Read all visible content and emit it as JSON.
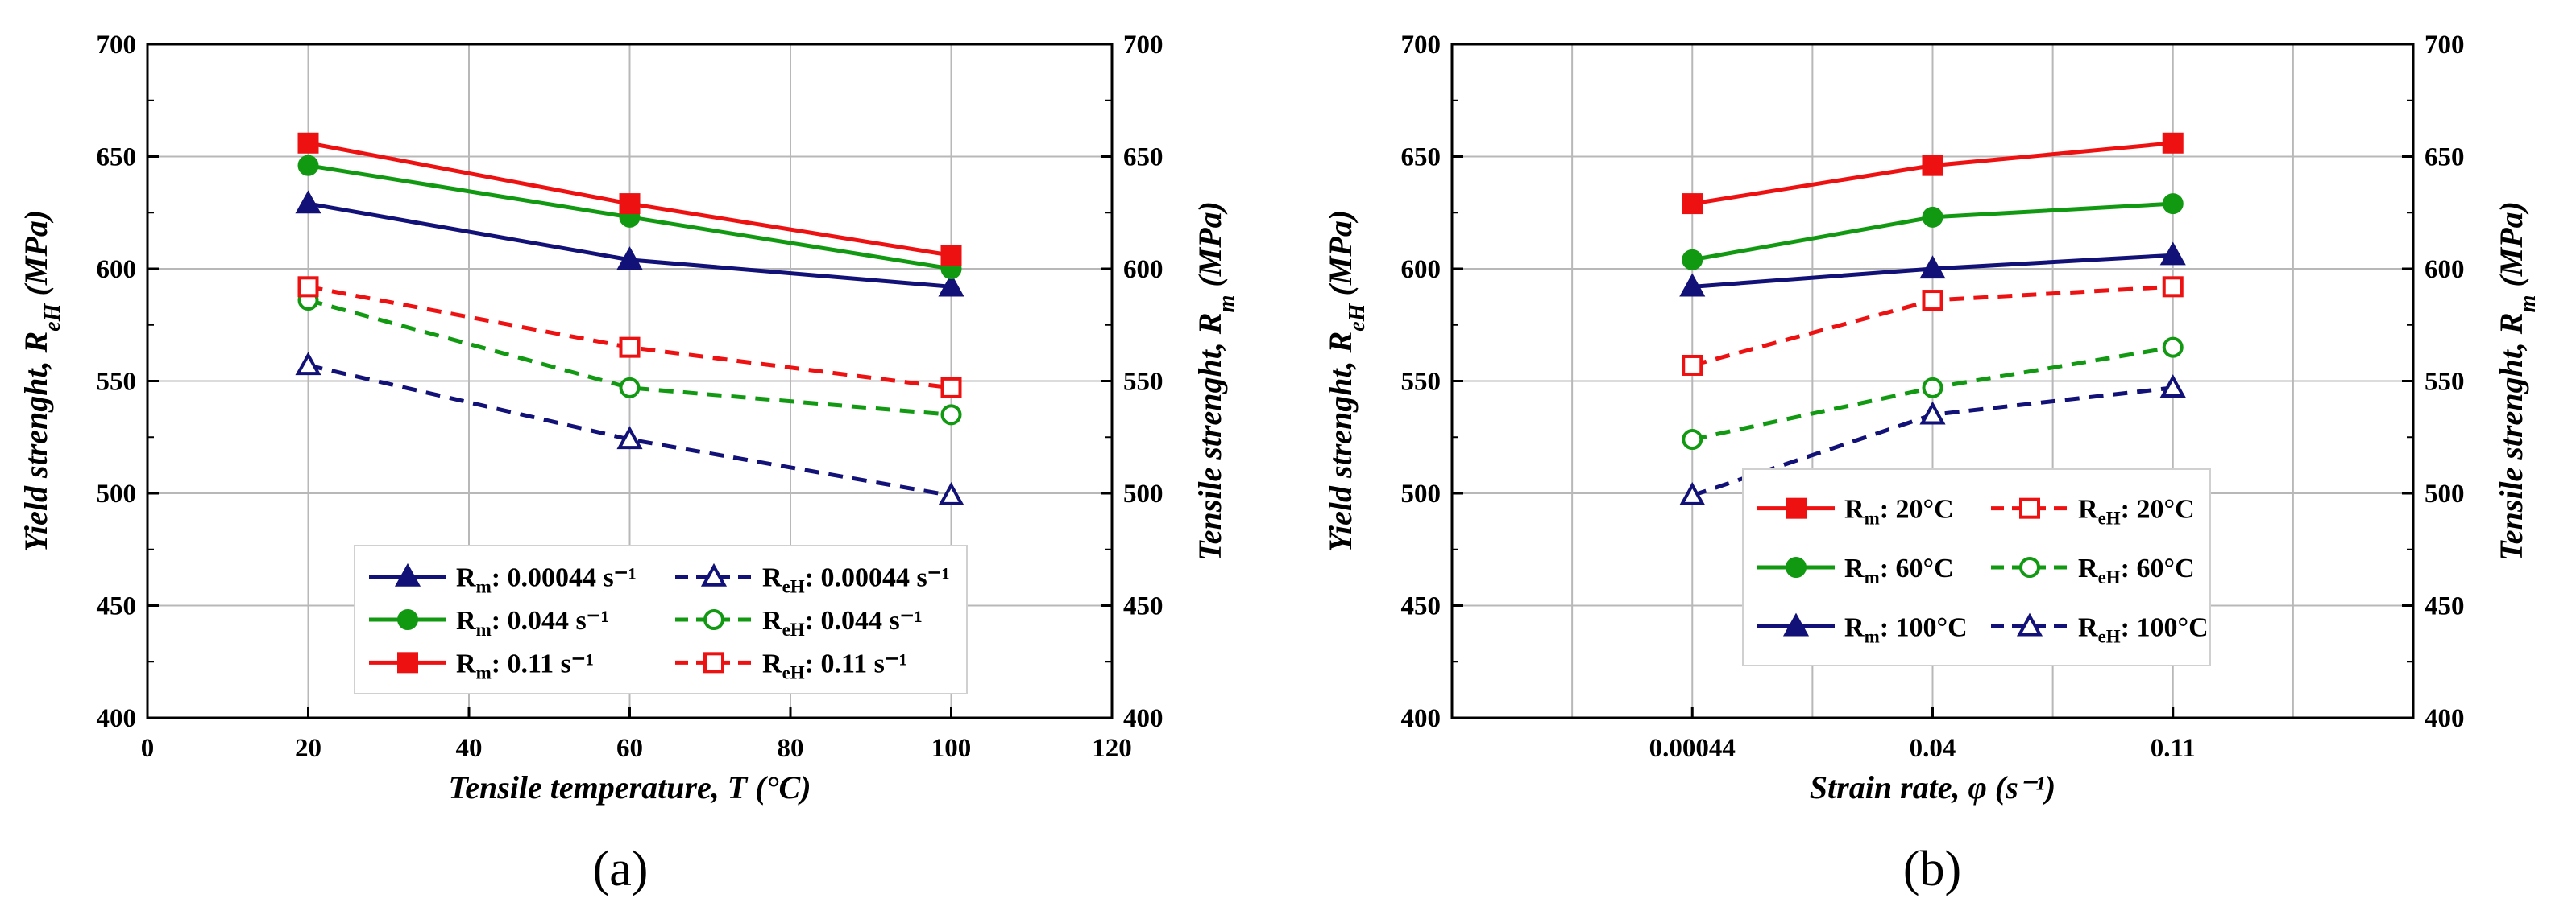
{
  "colors": {
    "red": "#ee1111",
    "green": "#119911",
    "navy": "#111177",
    "grid": "#b8b8b8",
    "axis": "#000000"
  },
  "panel_labels": [
    "(a)",
    "(b)"
  ],
  "chart_data": [
    {
      "type": "line",
      "panel": "(a)",
      "xlabel": "Tensile temperature, T (°C)",
      "ylabel_left": "Yield strenght, ReH (MPa)",
      "ylabel_right": "Tensile strenght, Rm (MPa)",
      "x_numeric": true,
      "xlim": [
        0,
        120
      ],
      "ylim": [
        400,
        700
      ],
      "xticks": [
        0,
        20,
        40,
        60,
        80,
        100,
        120
      ],
      "yticks": [
        400,
        450,
        500,
        550,
        600,
        650,
        700
      ],
      "grid": true,
      "legend_position": "bottom-center",
      "legend_columns": 2,
      "x": [
        20,
        60,
        100
      ],
      "series": [
        {
          "name": "Rm: 0.00044 s⁻¹",
          "base": "R",
          "sub": "m",
          "suffix": ": 0.00044 s⁻¹",
          "color_key": "navy",
          "dash": false,
          "marker": "triangle",
          "filled": true,
          "values": [
            629,
            604,
            592
          ]
        },
        {
          "name": "ReH: 0.00044 s⁻¹",
          "base": "R",
          "sub": "eH",
          "suffix": ": 0.00044 s⁻¹",
          "color_key": "navy",
          "dash": true,
          "marker": "triangle",
          "filled": false,
          "values": [
            557,
            524,
            499
          ]
        },
        {
          "name": "Rm: 0.044 s⁻¹",
          "base": "R",
          "sub": "m",
          "suffix": ": 0.044 s⁻¹",
          "color_key": "green",
          "dash": false,
          "marker": "circle",
          "filled": true,
          "values": [
            646,
            623,
            600
          ]
        },
        {
          "name": "ReH: 0.044 s⁻¹",
          "base": "R",
          "sub": "eH",
          "suffix": ": 0.044 s⁻¹",
          "color_key": "green",
          "dash": true,
          "marker": "circle",
          "filled": false,
          "values": [
            586,
            547,
            535
          ]
        },
        {
          "name": "Rm: 0.11 s⁻¹",
          "base": "R",
          "sub": "m",
          "suffix": ": 0.11 s⁻¹",
          "color_key": "red",
          "dash": false,
          "marker": "square",
          "filled": true,
          "values": [
            656,
            629,
            606
          ]
        },
        {
          "name": "ReH: 0.11 s⁻¹",
          "base": "R",
          "sub": "eH",
          "suffix": ": 0.11 s⁻¹",
          "color_key": "red",
          "dash": true,
          "marker": "square",
          "filled": false,
          "values": [
            592,
            565,
            547
          ]
        }
      ]
    },
    {
      "type": "line",
      "panel": "(b)",
      "xlabel": "Strain rate, φ (s⁻¹)",
      "ylabel_left": "Yield strenght, ReH (MPa)",
      "ylabel_right": "Tensile strenght, Rm (MPa)",
      "x_numeric": false,
      "categories": [
        "0.00044",
        "0.04",
        "0.11"
      ],
      "ylim": [
        400,
        700
      ],
      "yticks": [
        400,
        450,
        500,
        550,
        600,
        650,
        700
      ],
      "grid": true,
      "legend_position": "bottom-center",
      "legend_columns": 2,
      "series": [
        {
          "name": "Rm: 20°C",
          "base": "R",
          "sub": "m",
          "suffix": ": 20°C",
          "color_key": "red",
          "dash": false,
          "marker": "square",
          "filled": true,
          "values": [
            629,
            646,
            656
          ]
        },
        {
          "name": "ReH: 20°C",
          "base": "R",
          "sub": "eH",
          "suffix": ": 20°C",
          "color_key": "red",
          "dash": true,
          "marker": "square",
          "filled": false,
          "values": [
            557,
            586,
            592
          ]
        },
        {
          "name": "Rm: 60°C",
          "base": "R",
          "sub": "m",
          "suffix": ": 60°C",
          "color_key": "green",
          "dash": false,
          "marker": "circle",
          "filled": true,
          "values": [
            604,
            623,
            629
          ]
        },
        {
          "name": "ReH: 60°C",
          "base": "R",
          "sub": "eH",
          "suffix": ": 60°C",
          "color_key": "green",
          "dash": true,
          "marker": "circle",
          "filled": false,
          "values": [
            524,
            547,
            565
          ]
        },
        {
          "name": "Rm: 100°C",
          "base": "R",
          "sub": "m",
          "suffix": ": 100°C",
          "color_key": "navy",
          "dash": false,
          "marker": "triangle",
          "filled": true,
          "values": [
            592,
            600,
            606
          ]
        },
        {
          "name": "ReH: 100°C",
          "base": "R",
          "sub": "eH",
          "suffix": ": 100°C",
          "color_key": "navy",
          "dash": true,
          "marker": "triangle",
          "filled": false,
          "values": [
            499,
            535,
            547
          ]
        }
      ]
    }
  ]
}
